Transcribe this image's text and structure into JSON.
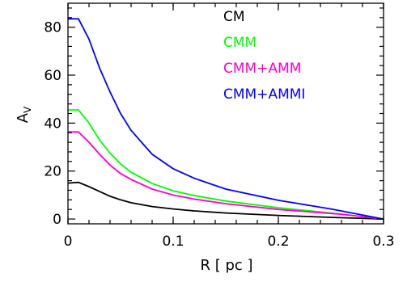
{
  "chart_data": {
    "type": "line",
    "title": "",
    "xlabel": "R [ pc ]",
    "ylabel": "A",
    "ylabel_sub": "V",
    "xlim": [
      0,
      0.3
    ],
    "ylim": [
      -2,
      90
    ],
    "xticks": [
      0,
      0.1,
      0.2,
      0.3
    ],
    "xtick_labels": [
      "0",
      "0.1",
      "0.2",
      "0.3"
    ],
    "yticks": [
      0,
      20,
      40,
      60,
      80
    ],
    "ytick_labels": [
      "0",
      "20",
      "40",
      "60",
      "80"
    ],
    "grid": false,
    "legend_position": "top-right",
    "series": [
      {
        "name": "CM",
        "color": "#000000",
        "x": [
          0,
          0.01,
          0.02,
          0.03,
          0.04,
          0.05,
          0.06,
          0.08,
          0.1,
          0.12,
          0.15,
          0.2,
          0.25,
          0.3
        ],
        "y": [
          15,
          15.3,
          13.5,
          11.5,
          9.5,
          8,
          6.8,
          5.2,
          4.2,
          3.4,
          2.5,
          1.5,
          0.7,
          0
        ]
      },
      {
        "name": "CMM",
        "color": "#00ff00",
        "x": [
          0,
          0.01,
          0.02,
          0.03,
          0.04,
          0.05,
          0.06,
          0.08,
          0.1,
          0.12,
          0.15,
          0.2,
          0.25,
          0.3
        ],
        "y": [
          45.5,
          45.5,
          40,
          33,
          27.5,
          23,
          19.5,
          14.8,
          11.8,
          9.8,
          7.5,
          4.7,
          2.5,
          0
        ]
      },
      {
        "name": "CMM+AMM",
        "color": "#ff00cc",
        "x": [
          0,
          0.01,
          0.02,
          0.03,
          0.04,
          0.05,
          0.06,
          0.08,
          0.1,
          0.12,
          0.15,
          0.2,
          0.25,
          0.26,
          0.3
        ],
        "y": [
          36.3,
          36.3,
          32,
          27,
          22.5,
          19,
          16.5,
          12.5,
          10,
          8.3,
          6.4,
          4,
          2.3,
          2,
          0
        ]
      },
      {
        "name": "CMM+AMMI",
        "color": "#0000ff",
        "x": [
          0,
          0.01,
          0.02,
          0.03,
          0.04,
          0.05,
          0.06,
          0.08,
          0.1,
          0.12,
          0.15,
          0.2,
          0.25,
          0.3
        ],
        "y": [
          83.5,
          83.5,
          75,
          63,
          53,
          44,
          37,
          27,
          21,
          17,
          12.5,
          7.8,
          4.2,
          0
        ]
      }
    ]
  }
}
